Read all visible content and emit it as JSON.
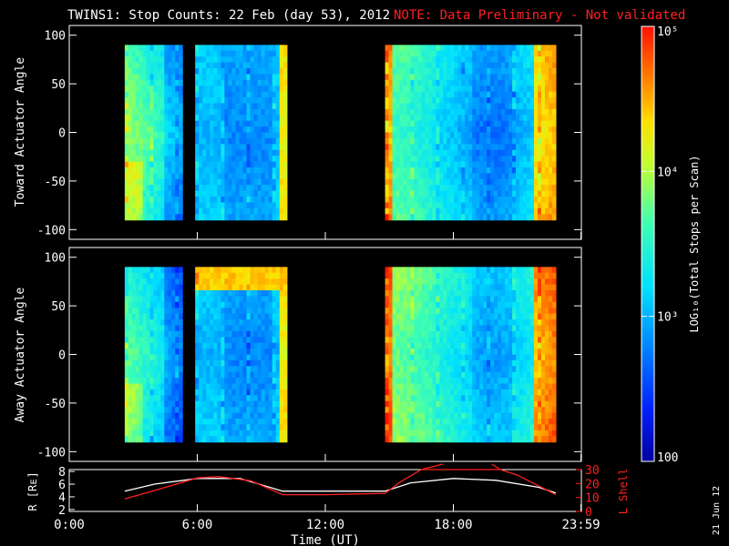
{
  "chart_data": {
    "type": "heatmap",
    "title": "TWINS1: Stop Counts: 22 Feb (day  53), 2012",
    "note": "NOTE: Data Preliminary - Not validated",
    "date_stamp": "21 Jun 12",
    "colorbar": {
      "label": "LOG₁₀(Total Stops per Scan)",
      "ticks": [
        {
          "value": 100,
          "label": "100"
        },
        {
          "value": 1000,
          "label": "10³"
        },
        {
          "value": 10000,
          "label": "10⁴"
        },
        {
          "value": 100000,
          "label": "10⁵"
        }
      ],
      "range": [
        100,
        100000
      ],
      "scale": "log"
    },
    "panels": [
      {
        "ylabel": "Toward Actuator Angle",
        "ylim": [
          -110,
          110
        ],
        "yticks": [
          100,
          50,
          0,
          -50,
          -100
        ],
        "data_blocks": [
          {
            "start_hour": 2.6,
            "end_hour": 5.3,
            "angle_range": [
              -90,
              90
            ],
            "profile": "hot_left",
            "base_log": 3.6
          },
          {
            "start_hour": 5.9,
            "end_hour": 10.2,
            "angle_range": [
              -90,
              90
            ],
            "profile": "cool_mid",
            "base_log": 3.0
          },
          {
            "start_hour": 14.8,
            "end_hour": 22.8,
            "angle_range": [
              -90,
              90
            ],
            "profile": "mixed_right",
            "base_log": 3.2
          }
        ]
      },
      {
        "ylabel": "Away Actuator Angle",
        "ylim": [
          -110,
          110
        ],
        "yticks": [
          100,
          50,
          0,
          -50,
          -100
        ],
        "data_blocks": [
          {
            "start_hour": 2.6,
            "end_hour": 5.3,
            "angle_range": [
              -90,
              90
            ],
            "profile": "hot_left",
            "base_log": 3.4
          },
          {
            "start_hour": 5.9,
            "end_hour": 10.2,
            "angle_range": [
              -90,
              90
            ],
            "profile": "cool_mid_hot_top",
            "base_log": 3.0
          },
          {
            "start_hour": 14.8,
            "end_hour": 22.8,
            "angle_range": [
              -90,
              90
            ],
            "profile": "mixed_right",
            "base_log": 3.4
          }
        ]
      }
    ],
    "orbit_panel": {
      "ylabel_left": "R [Rᴇ]",
      "ylabel_right": "L Shell",
      "left_ylim": [
        2,
        8
      ],
      "left_yticks": [
        8,
        6,
        4,
        2
      ],
      "right_ylim": [
        0,
        30
      ],
      "right_yticks": [
        30,
        20,
        10,
        0
      ],
      "R_series": {
        "name": "R",
        "color": "#ffffff",
        "x": [
          2.6,
          4.0,
          6.0,
          8.0,
          10.0,
          12.0,
          14.8,
          16.0,
          18.0,
          20.0,
          22.0,
          22.8
        ],
        "values": [
          4.9,
          6.0,
          6.9,
          6.9,
          4.9,
          4.9,
          4.9,
          6.2,
          6.9,
          6.6,
          5.5,
          4.6
        ]
      },
      "L_series": {
        "name": "L Shell",
        "color": "#ff2020",
        "x": [
          2.6,
          4.0,
          6.0,
          7.0,
          8.5,
          10.0,
          12.0,
          14.8,
          15.5,
          16.5,
          20.2,
          21.0,
          22.8
        ],
        "values": [
          9,
          15,
          24,
          25,
          22,
          12,
          12,
          13,
          21,
          30,
          30,
          26,
          12
        ]
      }
    },
    "xaxis": {
      "label": "Time (UT)",
      "range_hours": [
        0,
        24
      ],
      "ticks": [
        {
          "hour": 0,
          "label": "0:00"
        },
        {
          "hour": 6,
          "label": "6:00"
        },
        {
          "hour": 12,
          "label": "12:00"
        },
        {
          "hour": 18,
          "label": "18:00"
        },
        {
          "hour": 23.98,
          "label": "23:59"
        }
      ]
    }
  }
}
